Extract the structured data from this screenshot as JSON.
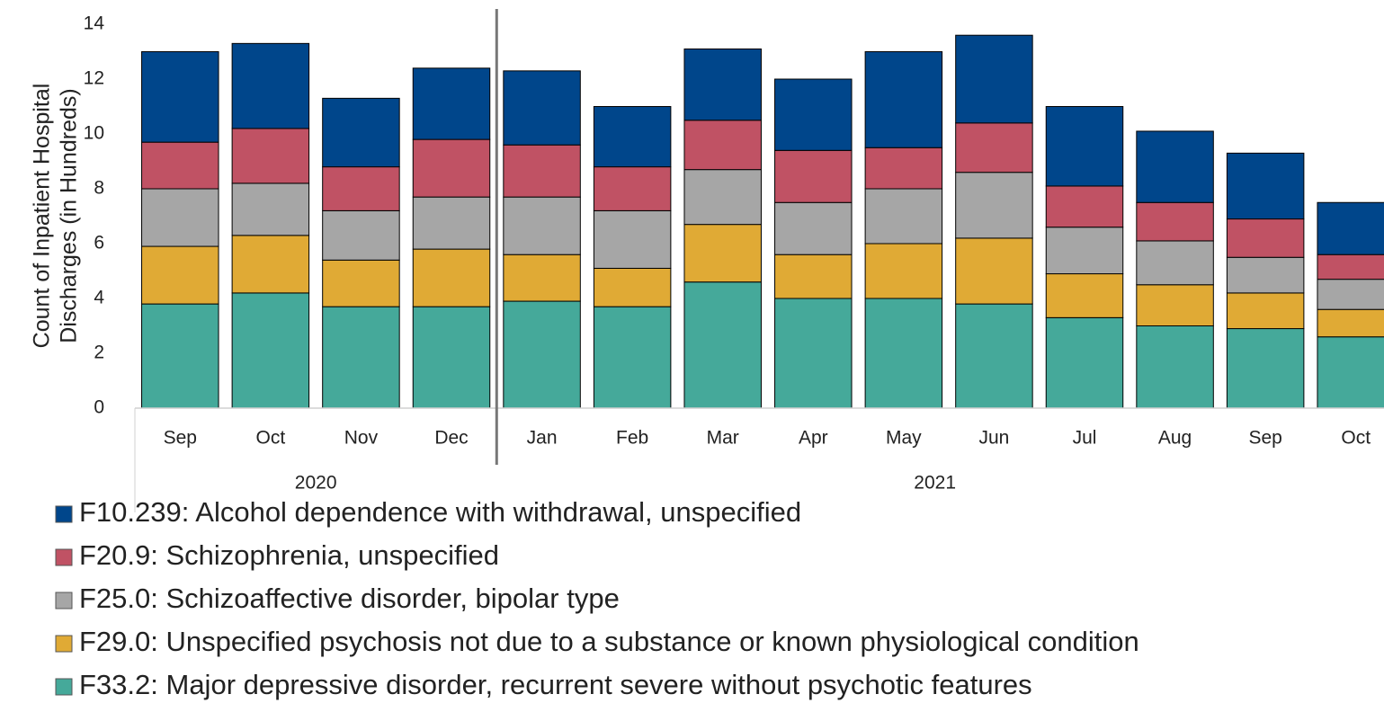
{
  "chart_data": {
    "type": "stacked_bar",
    "ylabel": [
      "Count of Inpatient Hospital",
      "Discharges (in Hundreds)"
    ],
    "categories": [
      "Sep",
      "Oct",
      "Nov",
      "Dec",
      "Jan",
      "Feb",
      "Mar",
      "Apr",
      "May",
      "Jun",
      "Jul",
      "Aug",
      "Sep",
      "Oct"
    ],
    "x_groups": [
      {
        "label": "2020",
        "count": 4
      },
      {
        "label": "2021",
        "count": 10
      }
    ],
    "ylim": [
      0,
      14
    ],
    "yticks": [
      0,
      2,
      4,
      6,
      8,
      10,
      12,
      14
    ],
    "series": [
      {
        "name": "F33.2: Major depressive disorder, recurrent severe without psychotic features",
        "color": "#45a99a",
        "values": [
          3.8,
          4.2,
          3.7,
          3.7,
          3.9,
          3.7,
          4.6,
          4.0,
          4.0,
          3.8,
          3.3,
          3.0,
          2.9,
          2.6
        ]
      },
      {
        "name": "F29.0: Unspecified psychosis not due to a substance or known physiological condition",
        "color": "#e0aa35",
        "values": [
          2.1,
          2.1,
          1.7,
          2.1,
          1.7,
          1.4,
          2.1,
          1.6,
          2.0,
          2.4,
          1.6,
          1.5,
          1.3,
          1.0
        ]
      },
      {
        "name": "F25.0: Schizoaffective disorder, bipolar type",
        "color": "#a6a6a6",
        "values": [
          2.1,
          1.9,
          1.8,
          1.9,
          2.1,
          2.1,
          2.0,
          1.9,
          2.0,
          2.4,
          1.7,
          1.6,
          1.3,
          1.1
        ]
      },
      {
        "name": "F20.9: Schizophrenia, unspecified",
        "color": "#c05264",
        "values": [
          1.7,
          2.0,
          1.6,
          2.1,
          1.9,
          1.6,
          1.8,
          1.9,
          1.5,
          1.8,
          1.5,
          1.4,
          1.4,
          0.9
        ]
      },
      {
        "name": "F10.239: Alcohol dependence with withdrawal, unspecified",
        "color": "#00468b",
        "values": [
          3.3,
          3.1,
          2.5,
          2.6,
          2.7,
          2.2,
          2.6,
          2.6,
          3.5,
          3.2,
          2.9,
          2.6,
          2.4,
          1.9
        ]
      }
    ]
  }
}
